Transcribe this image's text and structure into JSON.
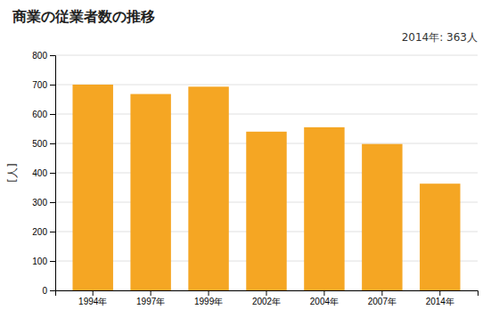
{
  "chart_data": {
    "type": "bar",
    "title": "商業の従業者数の推移",
    "ylabel": "[人]",
    "annotation": "2014年: 363人",
    "categories": [
      "1994年",
      "1997年",
      "1999年",
      "2002年",
      "2004年",
      "2007年",
      "2014年"
    ],
    "values": [
      700,
      668,
      693,
      540,
      555,
      498,
      363
    ],
    "color": "#F5A623",
    "ylim": [
      0,
      800
    ],
    "yticks": [
      0,
      100,
      200,
      300,
      400,
      500,
      600,
      700,
      800
    ],
    "grid": true
  }
}
